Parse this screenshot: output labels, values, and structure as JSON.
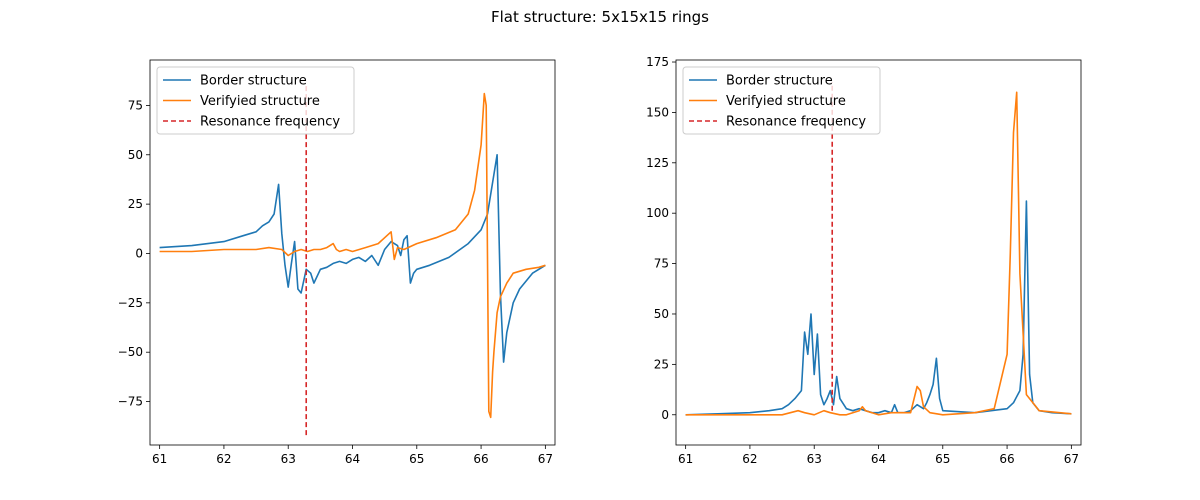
{
  "figure": {
    "title": "Flat structure: 5x15x15 rings"
  },
  "colors": {
    "border": "#1f77b4",
    "verified": "#ff7f0e",
    "resonance": "#d62728"
  },
  "chart_data": [
    {
      "type": "line",
      "xlim": [
        60.85,
        67.15
      ],
      "ylim": [
        -97,
        98
      ],
      "xticks": [
        61,
        62,
        63,
        64,
        65,
        66,
        67
      ],
      "yticks": [
        -75,
        -50,
        -25,
        0,
        25,
        50,
        75
      ],
      "legend_position": "top-left",
      "resonance": {
        "name": "Resonance frequency",
        "x": 63.28,
        "y_range": [
          -92,
          85
        ]
      },
      "series": [
        {
          "name": "Border structure",
          "x": [
            61.0,
            61.5,
            62.0,
            62.3,
            62.5,
            62.6,
            62.7,
            62.78,
            62.85,
            62.9,
            62.95,
            63.0,
            63.05,
            63.1,
            63.15,
            63.2,
            63.28,
            63.35,
            63.4,
            63.5,
            63.6,
            63.7,
            63.8,
            63.9,
            64.0,
            64.1,
            64.2,
            64.3,
            64.4,
            64.5,
            64.6,
            64.7,
            64.75,
            64.8,
            64.85,
            64.9,
            64.95,
            65.0,
            65.2,
            65.5,
            65.8,
            66.0,
            66.1,
            66.2,
            66.25,
            66.3,
            66.35,
            66.4,
            66.5,
            66.6,
            66.8,
            67.0
          ],
          "y": [
            3,
            4,
            6,
            9,
            11,
            14,
            16,
            20,
            35,
            10,
            -6,
            -17,
            -5,
            6,
            -18,
            -20,
            -8,
            -10,
            -15,
            -8,
            -7,
            -5,
            -4,
            -5,
            -3,
            -2,
            -4,
            -1,
            -6,
            2,
            6,
            4,
            -1,
            7,
            9,
            -15,
            -10,
            -8,
            -6,
            -2,
            5,
            12,
            20,
            40,
            50,
            -20,
            -55,
            -40,
            -25,
            -18,
            -10,
            -6
          ]
        },
        {
          "name": "Verifyied structure",
          "x": [
            61.0,
            61.5,
            62.0,
            62.5,
            62.7,
            62.9,
            63.0,
            63.1,
            63.2,
            63.3,
            63.4,
            63.5,
            63.6,
            63.7,
            63.75,
            63.8,
            63.9,
            64.0,
            64.2,
            64.4,
            64.6,
            64.65,
            64.7,
            64.8,
            65.0,
            65.3,
            65.6,
            65.8,
            65.9,
            66.0,
            66.05,
            66.08,
            66.12,
            66.15,
            66.18,
            66.2,
            66.25,
            66.3,
            66.4,
            66.5,
            66.7,
            66.9,
            67.0
          ],
          "y": [
            1,
            1,
            2,
            2,
            3,
            2,
            -1,
            1,
            2,
            1,
            2,
            2,
            3,
            5,
            2,
            1,
            2,
            1,
            3,
            5,
            11,
            -3,
            3,
            2,
            5,
            8,
            12,
            20,
            32,
            55,
            81,
            75,
            -80,
            -83,
            -60,
            -50,
            -30,
            -22,
            -15,
            -10,
            -8,
            -7,
            -6
          ]
        }
      ]
    },
    {
      "type": "line",
      "xlim": [
        60.85,
        67.15
      ],
      "ylim": [
        -15,
        176
      ],
      "xticks": [
        61,
        62,
        63,
        64,
        65,
        66,
        67
      ],
      "yticks": [
        0,
        25,
        50,
        75,
        100,
        125,
        150,
        175
      ],
      "legend_position": "top-left",
      "resonance": {
        "name": "Resonance frequency",
        "x": 63.28,
        "y_range": [
          2,
          165
        ]
      },
      "series": [
        {
          "name": "Border structure",
          "x": [
            61.0,
            61.5,
            62.0,
            62.3,
            62.5,
            62.6,
            62.7,
            62.8,
            62.85,
            62.9,
            62.95,
            63.0,
            63.05,
            63.1,
            63.15,
            63.2,
            63.25,
            63.3,
            63.35,
            63.4,
            63.5,
            63.6,
            63.7,
            63.8,
            63.9,
            64.0,
            64.1,
            64.2,
            64.25,
            64.3,
            64.4,
            64.5,
            64.6,
            64.7,
            64.75,
            64.8,
            64.85,
            64.9,
            64.95,
            65.0,
            65.5,
            66.0,
            66.1,
            66.2,
            66.25,
            66.3,
            66.35,
            66.4,
            66.5,
            66.7,
            67.0
          ],
          "y": [
            0,
            0.5,
            1,
            2,
            3,
            5,
            8,
            12,
            41,
            30,
            50,
            20,
            40,
            10,
            5,
            8,
            12,
            5,
            19,
            8,
            3,
            2,
            3,
            2,
            1,
            1,
            2,
            1,
            5,
            1,
            1,
            2,
            5,
            3,
            6,
            10,
            15,
            28,
            8,
            2,
            1,
            3,
            6,
            12,
            30,
            106,
            20,
            6,
            2,
            1,
            0.5
          ]
        },
        {
          "name": "Verifyied structure",
          "x": [
            61.0,
            61.5,
            62.0,
            62.5,
            62.75,
            62.85,
            63.0,
            63.15,
            63.25,
            63.4,
            63.5,
            63.7,
            63.75,
            63.8,
            64.0,
            64.2,
            64.5,
            64.6,
            64.65,
            64.7,
            64.8,
            65.0,
            65.5,
            65.8,
            66.0,
            66.05,
            66.1,
            66.15,
            66.2,
            66.3,
            66.5,
            67.0
          ],
          "y": [
            0,
            0,
            0,
            0,
            2,
            1,
            0,
            2,
            1,
            0,
            0,
            2,
            4,
            2,
            0,
            1,
            1,
            14,
            12,
            4,
            1,
            0,
            1,
            3,
            30,
            80,
            140,
            160,
            70,
            10,
            2,
            0.5
          ]
        }
      ]
    }
  ]
}
